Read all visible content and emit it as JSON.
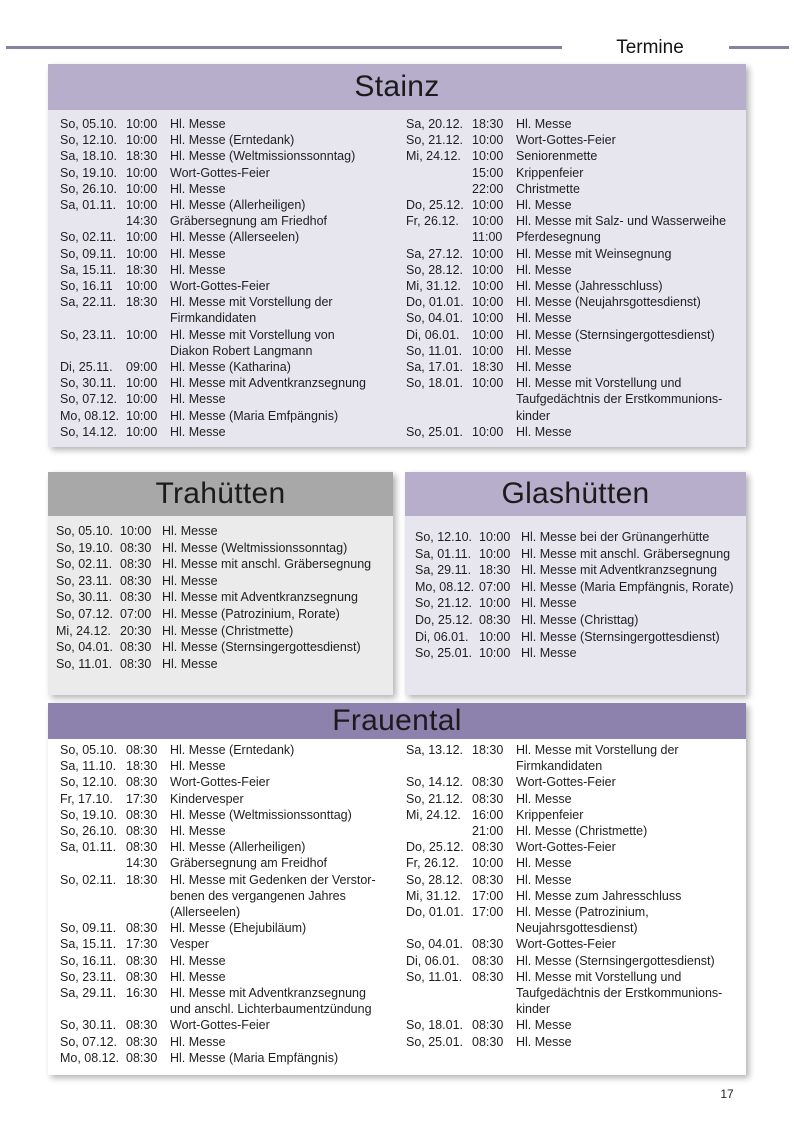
{
  "page": {
    "header_title": "Termine",
    "page_number": "17"
  },
  "colors": {
    "accent_rule": "#8a7fa5",
    "section_header_purple": "#b6aecb",
    "section_body_purple": "#e7e5ee",
    "section_header_gray": "#a8a8a8",
    "section_body_gray": "#ebebeb",
    "section_header_dark_purple": "#8d82ad",
    "section_body_white": "#ffffff"
  },
  "sections": {
    "stainz": {
      "title": "Stainz",
      "columns": [
        [
          {
            "date": "So, 05.10.",
            "time": "10:00",
            "desc": "Hl. Messe"
          },
          {
            "date": "So, 12.10.",
            "time": "10:00",
            "desc": "Hl. Messe (Erntedank)"
          },
          {
            "date": "Sa, 18.10.",
            "time": "18:30",
            "desc": "Hl. Messe (Weltmissionssonntag)"
          },
          {
            "date": "So, 19.10.",
            "time": "10:00",
            "desc": "Wort-Gottes-Feier"
          },
          {
            "date": "So, 26.10.",
            "time": "10:00",
            "desc": "Hl. Messe"
          },
          {
            "date": "Sa, 01.11.",
            "time": "10:00",
            "desc": "Hl. Messe (Allerheiligen)"
          },
          {
            "date": "",
            "time": "14:30",
            "desc": "Gräbersegnung am Friedhof"
          },
          {
            "date": "So, 02.11.",
            "time": "10:00",
            "desc": "Hl. Messe (Allerseelen)"
          },
          {
            "date": "So, 09.11.",
            "time": "10:00",
            "desc": "Hl. Messe"
          },
          {
            "date": "Sa, 15.11.",
            "time": "18:30",
            "desc": "Hl. Messe"
          },
          {
            "date": "So, 16.11",
            "time": "10:00",
            "desc": "Wort-Gottes-Feier"
          },
          {
            "date": "Sa, 22.11.",
            "time": "18:30",
            "desc": "Hl. Messe mit Vorstellung der\nFirmkandidaten"
          },
          {
            "date": "So, 23.11.",
            "time": "10:00",
            "desc": "Hl. Messe mit Vorstellung von\nDiakon Robert Langmann"
          },
          {
            "date": "Di, 25.11.",
            "time": "09:00",
            "desc": "Hl. Messe (Katharina)"
          },
          {
            "date": "So, 30.11.",
            "time": "10:00",
            "desc": "Hl. Messe mit Adventkranzsegnung"
          },
          {
            "date": "So, 07.12.",
            "time": "10:00",
            "desc": "Hl. Messe"
          },
          {
            "date": "Mo, 08.12.",
            "time": "10:00",
            "desc": "Hl. Messe (Maria Emfpängnis)"
          },
          {
            "date": "So, 14.12.",
            "time": "10:00",
            "desc": "Hl. Messe"
          }
        ],
        [
          {
            "date": "Sa, 20.12.",
            "time": "18:30",
            "desc": "Hl. Messe"
          },
          {
            "date": "So, 21.12.",
            "time": "10:00",
            "desc": "Wort-Gottes-Feier"
          },
          {
            "date": "Mi, 24.12.",
            "time": "10:00",
            "desc": "Seniorenmette"
          },
          {
            "date": "",
            "time": "15:00",
            "desc": "Krippenfeier"
          },
          {
            "date": "",
            "time": "22:00",
            "desc": "Christmette"
          },
          {
            "date": "Do, 25.12.",
            "time": "10:00",
            "desc": "Hl. Messe"
          },
          {
            "date": "Fr, 26.12.",
            "time": "10:00",
            "desc": "Hl. Messe mit Salz- und Wasserweihe"
          },
          {
            "date": "",
            "time": "11:00",
            "desc": "Pferdesegnung"
          },
          {
            "date": "Sa, 27.12.",
            "time": "10:00",
            "desc": "Hl. Messe mit Weinsegnung"
          },
          {
            "date": "So, 28.12.",
            "time": "10:00",
            "desc": "Hl. Messe"
          },
          {
            "date": "Mi, 31.12.",
            "time": "10:00",
            "desc": "Hl. Messe (Jahresschluss)"
          },
          {
            "date": "Do, 01.01.",
            "time": "10:00",
            "desc": "Hl. Messe (Neujahrsgottesdienst)"
          },
          {
            "date": "So, 04.01.",
            "time": "10:00",
            "desc": "Hl. Messe"
          },
          {
            "date": "Di, 06.01.",
            "time": "10:00",
            "desc": "Hl. Messe (Sternsingergottesdienst)"
          },
          {
            "date": "So, 11.01.",
            "time": "10:00",
            "desc": "Hl. Messe"
          },
          {
            "date": "Sa, 17.01.",
            "time": "18:30",
            "desc": "Hl. Messe"
          },
          {
            "date": "So, 18.01.",
            "time": "10:00",
            "desc": "Hl. Messe mit Vorstellung und\nTaufgedächtnis der Erstkommunions-\nkinder"
          },
          {
            "date": "So, 25.01.",
            "time": "10:00",
            "desc": "Hl. Messe"
          }
        ]
      ]
    },
    "trahuetten": {
      "title": "Trahütten",
      "columns": [
        [
          {
            "date": "So, 05.10.",
            "time": "10:00",
            "desc": "Hl. Messe"
          },
          {
            "date": "So, 19.10.",
            "time": "08:30",
            "desc": "Hl. Messe (Weltmissionssonntag)"
          },
          {
            "date": "So, 02.11.",
            "time": "08:30",
            "desc": "Hl. Messe mit anschl. Gräbersegnung"
          },
          {
            "date": "So, 23.11.",
            "time": "08:30",
            "desc": "Hl. Messe"
          },
          {
            "date": "So, 30.11.",
            "time": "08:30",
            "desc": "Hl. Messe mit Adventkranzsegnung"
          },
          {
            "date": "So, 07.12.",
            "time": "07:00",
            "desc": "Hl. Messe (Patrozinium, Rorate)"
          },
          {
            "date": "Mi, 24.12.",
            "time": "20:30",
            "desc": "Hl. Messe (Christmette)"
          },
          {
            "date": "So, 04.01.",
            "time": "08:30",
            "desc": "Hl. Messe (Sternsingergottesdienst)"
          },
          {
            "date": "So, 11.01.",
            "time": "08:30",
            "desc": "Hl. Messe"
          }
        ]
      ]
    },
    "glashuetten": {
      "title": "Glashütten",
      "columns": [
        [
          {
            "date": "So, 12.10.",
            "time": "10:00",
            "desc": "Hl. Messe bei der Grünangerhütte"
          },
          {
            "date": "Sa, 01.11.",
            "time": "10:00",
            "desc": "Hl. Messe mit anschl. Gräbersegnung"
          },
          {
            "date": "Sa, 29.11.",
            "time": "18:30",
            "desc": "Hl. Messe mit Adventkranzsegnung"
          },
          {
            "date": "Mo, 08.12.",
            "time": "07:00",
            "desc": "Hl. Messe (Maria Empfängnis, Rorate)"
          },
          {
            "date": "So, 21.12.",
            "time": "10:00",
            "desc": "Hl. Messe"
          },
          {
            "date": "Do, 25.12.",
            "time": "08:30",
            "desc": "Hl. Messe (Christtag)"
          },
          {
            "date": "Di, 06.01.",
            "time": "10:00",
            "desc": "Hl. Messe (Sternsingergottesdienst)"
          },
          {
            "date": "So, 25.01.",
            "time": "10:00",
            "desc": "Hl. Messe"
          }
        ]
      ]
    },
    "frauental": {
      "title": "Frauental",
      "columns": [
        [
          {
            "date": "So, 05.10.",
            "time": "08:30",
            "desc": "Hl. Messe (Erntedank)"
          },
          {
            "date": "Sa, 11.10.",
            "time": "18:30",
            "desc": "Hl. Messe"
          },
          {
            "date": "So, 12.10.",
            "time": "08:30",
            "desc": "Wort-Gottes-Feier"
          },
          {
            "date": "Fr, 17.10.",
            "time": "17:30",
            "desc": "Kindervesper"
          },
          {
            "date": "So, 19.10.",
            "time": "08:30",
            "desc": "Hl. Messe (Weltmissionssonttag)"
          },
          {
            "date": "So, 26.10.",
            "time": "08:30",
            "desc": "Hl. Messe"
          },
          {
            "date": "Sa, 01.11.",
            "time": "08:30",
            "desc": "Hl. Messe (Allerheiligen)"
          },
          {
            "date": "",
            "time": "14:30",
            "desc": "Gräbersegnung am Freidhof"
          },
          {
            "date": "So, 02.11.",
            "time": "18:30",
            "desc": "Hl. Messe mit Gedenken der Verstor-\nbenen des vergangenen Jahres\n(Allerseelen)"
          },
          {
            "date": "So, 09.11.",
            "time": "08:30",
            "desc": "Hl. Messe (Ehejubiläum)"
          },
          {
            "date": "Sa, 15.11.",
            "time": "17:30",
            "desc": "Vesper"
          },
          {
            "date": "So, 16.11.",
            "time": "08:30",
            "desc": "Hl. Messe"
          },
          {
            "date": "So, 23.11.",
            "time": "08:30",
            "desc": "Hl. Messe"
          },
          {
            "date": "Sa, 29.11.",
            "time": "16:30",
            "desc": "Hl. Messe mit Adventkranzsegnung\nund anschl. Lichterbaumentzündung"
          },
          {
            "date": "So, 30.11.",
            "time": "08:30",
            "desc": "Wort-Gottes-Feier"
          },
          {
            "date": "So, 07.12.",
            "time": "08:30",
            "desc": "Hl. Messe"
          },
          {
            "date": "Mo, 08.12.",
            "time": "08:30",
            "desc": "Hl. Messe (Maria Empfängnis)"
          }
        ],
        [
          {
            "date": "Sa, 13.12.",
            "time": "18:30",
            "desc": "Hl. Messe mit Vorstellung der\nFirmkandidaten"
          },
          {
            "date": "So, 14.12.",
            "time": "08:30",
            "desc": "Wort-Gottes-Feier"
          },
          {
            "date": "So, 21.12.",
            "time": "08:30",
            "desc": "Hl. Messe"
          },
          {
            "date": "Mi, 24.12.",
            "time": "16:00",
            "desc": "Krippenfeier"
          },
          {
            "date": "",
            "time": "21:00",
            "desc": "Hl. Messe (Christmette)"
          },
          {
            "date": "Do, 25.12.",
            "time": "08:30",
            "desc": "Wort-Gottes-Feier"
          },
          {
            "date": "Fr, 26.12.",
            "time": "10:00",
            "desc": "Hl. Messe"
          },
          {
            "date": "So, 28.12.",
            "time": "08:30",
            "desc": "Hl. Messe"
          },
          {
            "date": "Mi, 31.12.",
            "time": "17:00",
            "desc": "Hl. Messe zum Jahresschluss"
          },
          {
            "date": "Do, 01.01.",
            "time": "17:00",
            "desc": "Hl. Messe (Patrozinium,\nNeujahrsgottesdienst)"
          },
          {
            "date": "So, 04.01.",
            "time": "08:30",
            "desc": "Wort-Gottes-Feier"
          },
          {
            "date": "Di, 06.01.",
            "time": "08:30",
            "desc": "Hl. Messe (Sternsingergottesdienst)"
          },
          {
            "date": "So, 11.01.",
            "time": "08:30",
            "desc": "Hl. Messe mit Vorstellung und\nTaufgedächtnis der Erstkommunions-\nkinder"
          },
          {
            "date": "So, 18.01.",
            "time": "08:30",
            "desc": "Hl. Messe"
          },
          {
            "date": "So, 25.01.",
            "time": "08:30",
            "desc": "Hl. Messe"
          }
        ]
      ]
    }
  }
}
